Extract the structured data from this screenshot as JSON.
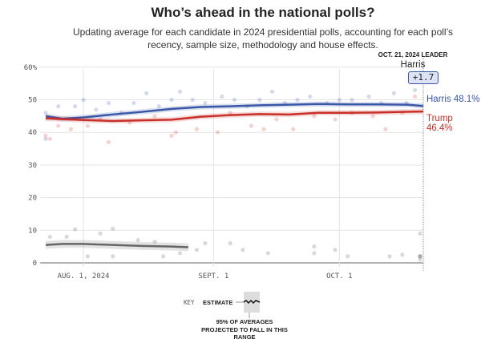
{
  "header": {
    "title": "Who’s ahead in the national polls?",
    "subtitle": "Updating average for each candidate in 2024 presidential polls, accounting for each poll’s recency, sample size, methodology and house effects."
  },
  "leader": {
    "date_label": "OCT. 21, 2024 LEADER",
    "name": "Harris",
    "margin": "+1.7"
  },
  "key": {
    "label": "KEY",
    "estimate": "ESTIMATE",
    "range_note": "95% OF AVERAGES PROJECTED TO FALL IN THIS RANGE"
  },
  "colors": {
    "harris": "#3a56a6",
    "trump": "#c8302a",
    "other": "#666666",
    "grid": "#e3e3e3"
  },
  "chart_data": {
    "type": "line",
    "title": "Who’s ahead in the national polls?",
    "ylim": [
      0,
      60
    ],
    "yticks": [
      0,
      10,
      20,
      30,
      40,
      50,
      60
    ],
    "ytick_labels": [
      "0",
      "10",
      "20",
      "30",
      "40",
      "50",
      "60%"
    ],
    "xticks": [
      "2024-08-01",
      "2024-09-01",
      "2024-10-01"
    ],
    "xtick_labels": [
      "AUG. 1, 2024",
      "SEPT. 1",
      "OCT. 1"
    ],
    "xlim": [
      "2024-07-23",
      "2024-10-21"
    ],
    "grid": true,
    "series": [
      {
        "name": "Harris",
        "end_label": "Harris 48.1%",
        "color": "#3a56a6",
        "x": [
          "2024-07-23",
          "2024-07-27",
          "2024-08-01",
          "2024-08-08",
          "2024-08-15",
          "2024-08-22",
          "2024-08-29",
          "2024-09-05",
          "2024-09-12",
          "2024-09-19",
          "2024-09-26",
          "2024-10-03",
          "2024-10-10",
          "2024-10-17",
          "2024-10-21"
        ],
        "y": [
          45.0,
          44.2,
          44.6,
          45.5,
          46.3,
          47.2,
          47.8,
          48.0,
          48.3,
          48.5,
          48.7,
          48.6,
          48.6,
          48.5,
          48.1
        ],
        "polls": [
          [
            "2024-07-23",
            46
          ],
          [
            "2024-07-23",
            38
          ],
          [
            "2024-07-26",
            48
          ],
          [
            "2024-07-30",
            48
          ],
          [
            "2024-08-01",
            50
          ],
          [
            "2024-08-04",
            47
          ],
          [
            "2024-08-07",
            49
          ],
          [
            "2024-08-10",
            46
          ],
          [
            "2024-08-13",
            49
          ],
          [
            "2024-08-16",
            52
          ],
          [
            "2024-08-19",
            48
          ],
          [
            "2024-08-22",
            50
          ],
          [
            "2024-08-24",
            52.5
          ],
          [
            "2024-08-27",
            50
          ],
          [
            "2024-08-30",
            49
          ],
          [
            "2024-09-03",
            51
          ],
          [
            "2024-09-06",
            50
          ],
          [
            "2024-09-09",
            48
          ],
          [
            "2024-09-12",
            50
          ],
          [
            "2024-09-15",
            52.5
          ],
          [
            "2024-09-18",
            49
          ],
          [
            "2024-09-21",
            50
          ],
          [
            "2024-09-24",
            51
          ],
          [
            "2024-09-28",
            49
          ],
          [
            "2024-10-01",
            50
          ],
          [
            "2024-10-04",
            50
          ],
          [
            "2024-10-08",
            51
          ],
          [
            "2024-10-11",
            49
          ],
          [
            "2024-10-14",
            52
          ],
          [
            "2024-10-17",
            49
          ],
          [
            "2024-10-19",
            53
          ]
        ]
      },
      {
        "name": "Trump",
        "end_label": "Trump 46.4%",
        "color": "#c8302a",
        "x": [
          "2024-07-23",
          "2024-08-01",
          "2024-08-08",
          "2024-08-15",
          "2024-08-22",
          "2024-08-29",
          "2024-09-05",
          "2024-09-12",
          "2024-09-19",
          "2024-09-26",
          "2024-10-03",
          "2024-10-10",
          "2024-10-17",
          "2024-10-21"
        ],
        "y": [
          44.3,
          43.8,
          43.5,
          43.7,
          43.9,
          44.8,
          45.3,
          45.6,
          45.5,
          46.0,
          46.0,
          46.1,
          46.3,
          46.4
        ],
        "polls": [
          [
            "2024-07-23",
            39
          ],
          [
            "2024-07-24",
            38
          ],
          [
            "2024-07-26",
            42
          ],
          [
            "2024-07-29",
            41
          ],
          [
            "2024-08-02",
            42
          ],
          [
            "2024-08-05",
            44
          ],
          [
            "2024-08-07",
            37
          ],
          [
            "2024-08-12",
            43
          ],
          [
            "2024-08-18",
            45
          ],
          [
            "2024-08-22",
            39
          ],
          [
            "2024-08-23",
            40
          ],
          [
            "2024-08-28",
            41
          ],
          [
            "2024-09-02",
            40
          ],
          [
            "2024-09-05",
            46
          ],
          [
            "2024-09-10",
            42
          ],
          [
            "2024-09-13",
            41
          ],
          [
            "2024-09-16",
            44
          ],
          [
            "2024-09-20",
            41
          ],
          [
            "2024-09-25",
            45
          ],
          [
            "2024-09-30",
            44
          ],
          [
            "2024-10-04",
            46
          ],
          [
            "2024-10-09",
            45
          ],
          [
            "2024-10-12",
            41
          ],
          [
            "2024-10-16",
            46
          ],
          [
            "2024-10-19",
            51
          ]
        ]
      },
      {
        "name": "",
        "color": "#666666",
        "x": [
          "2024-07-23",
          "2024-07-27",
          "2024-08-01",
          "2024-08-08",
          "2024-08-15",
          "2024-08-22",
          "2024-08-26"
        ],
        "y": [
          5.5,
          5.8,
          5.8,
          5.5,
          5.2,
          5.0,
          4.8
        ],
        "polls": [
          [
            "2024-07-24",
            8
          ],
          [
            "2024-07-28",
            8
          ],
          [
            "2024-07-30",
            10.3
          ],
          [
            "2024-08-02",
            2
          ],
          [
            "2024-08-05",
            9
          ],
          [
            "2024-08-08",
            10.5
          ],
          [
            "2024-08-08",
            2
          ],
          [
            "2024-08-14",
            7
          ],
          [
            "2024-08-18",
            6.5
          ],
          [
            "2024-08-20",
            2
          ],
          [
            "2024-08-24",
            3
          ],
          [
            "2024-08-28",
            4
          ],
          [
            "2024-08-30",
            6
          ],
          [
            "2024-09-05",
            6
          ],
          [
            "2024-09-08",
            4
          ],
          [
            "2024-09-14",
            3
          ],
          [
            "2024-09-25",
            5
          ],
          [
            "2024-09-25",
            3
          ],
          [
            "2024-09-30",
            4
          ],
          [
            "2024-10-03",
            2
          ],
          [
            "2024-10-13",
            2
          ],
          [
            "2024-10-16",
            2.5
          ],
          [
            "2024-10-24",
            1
          ],
          [
            "2024-10-26",
            2
          ],
          [
            "2024-10-30",
            2
          ],
          [
            "2024-11-04",
            2
          ],
          [
            "2024-11-09",
            9
          ]
        ]
      }
    ]
  }
}
